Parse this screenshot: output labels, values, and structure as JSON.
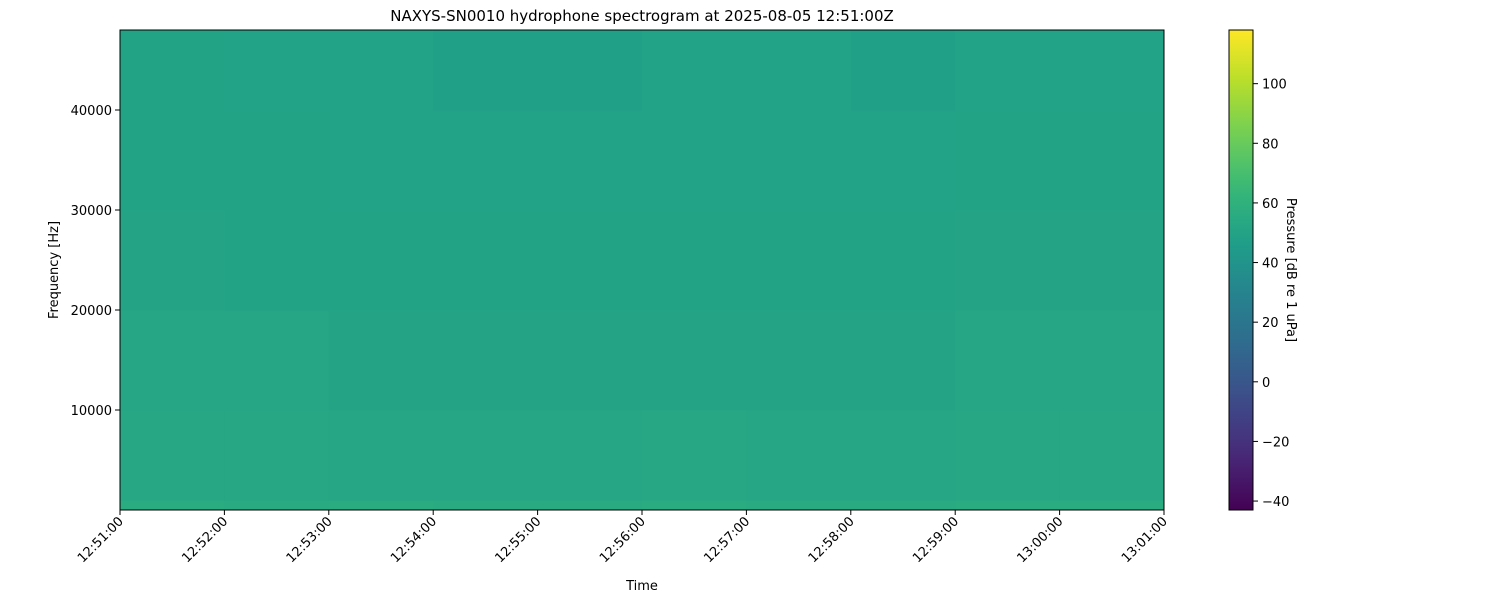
{
  "chart_data": {
    "type": "heatmap",
    "title": "NAXYS-SN0010 hydrophone spectrogram at 2025-08-05 12:51:00Z",
    "xlabel": "Time",
    "ylabel": "Frequency [Hz]",
    "x_ticks": [
      "12:51:00",
      "12:52:00",
      "12:53:00",
      "12:54:00",
      "12:55:00",
      "12:56:00",
      "12:57:00",
      "12:58:00",
      "12:59:00",
      "13:00:00",
      "13:01:00"
    ],
    "y_ticks": [
      10000,
      20000,
      30000,
      40000
    ],
    "ylim": [
      0,
      48000
    ],
    "colormap": "viridis",
    "colorbar": {
      "label": "Pressure [dB re 1 uPa]",
      "range": [
        -43,
        118
      ],
      "ticks": [
        -40,
        -20,
        0,
        20,
        40,
        60,
        80,
        100
      ]
    },
    "freq_bands": [
      0,
      1000,
      10000,
      20000,
      30000,
      40000,
      48000
    ],
    "time_bins": [
      "12:51",
      "12:52",
      "12:53",
      "12:54",
      "12:55",
      "12:56",
      "12:57",
      "12:58",
      "12:59",
      "13:00"
    ],
    "values": [
      [
        56,
        55,
        56,
        55,
        55,
        56,
        55,
        55,
        56,
        56
      ],
      [
        53,
        53,
        52,
        52,
        52,
        53,
        52,
        52,
        53,
        53
      ],
      [
        52,
        52,
        51,
        51,
        51,
        51,
        51,
        51,
        52,
        52
      ],
      [
        51,
        50,
        50,
        50,
        50,
        50,
        50,
        50,
        51,
        51
      ],
      [
        50,
        50,
        49,
        49,
        49,
        49,
        49,
        49,
        50,
        50
      ],
      [
        50,
        49,
        49,
        48,
        48,
        49,
        49,
        48,
        49,
        49
      ]
    ]
  }
}
